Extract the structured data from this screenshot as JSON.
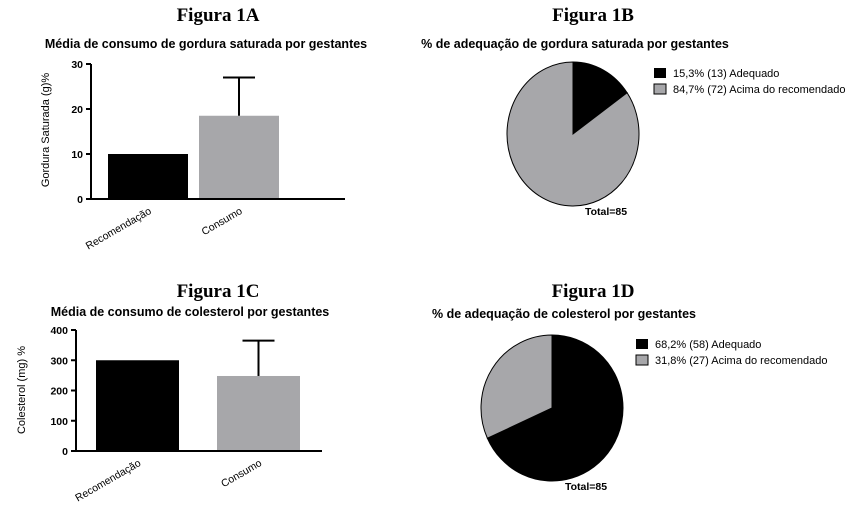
{
  "colors": {
    "recommendation": "#000000",
    "consumption": "#a7a7aa",
    "adequate": "#000000",
    "above": "#a7a7aa"
  },
  "chart_data": [
    {
      "id": "1A",
      "type": "bar",
      "heading": "Figura 1A",
      "title": "Média de consumo de gordura saturada por gestantes",
      "ylabel": "Gordura Saturada (g)%",
      "categories": [
        "Recomendação",
        "Consumo"
      ],
      "values": [
        10,
        18.5
      ],
      "error_upper": [
        0,
        8.5
      ],
      "ylim": [
        0,
        30
      ],
      "yticks": [
        0,
        10,
        20,
        30
      ]
    },
    {
      "id": "1B",
      "type": "pie",
      "heading": "Figura 1B",
      "title": "% de adequação de gordura saturada por gestantes",
      "labels": [
        "15,3% (13) Adequado",
        "84,7% (72) Acima do recomendado"
      ],
      "values": [
        15.3,
        84.7
      ],
      "total_label": "Total=85"
    },
    {
      "id": "1C",
      "type": "bar",
      "heading": "Figura 1C",
      "title": "Média de consumo de colesterol por gestantes",
      "ylabel": "Colesterol (mg) %",
      "categories": [
        "Recomendação",
        "Consumo"
      ],
      "values": [
        300,
        248
      ],
      "error_upper": [
        0,
        117
      ],
      "ylim": [
        0,
        400
      ],
      "yticks": [
        0,
        100,
        200,
        300,
        400
      ]
    },
    {
      "id": "1D",
      "type": "pie",
      "heading": "Figura 1D",
      "title": "% de adequação de colesterol por gestantes",
      "labels": [
        "68,2% (58) Adequado",
        "31,8% (27) Acima do recomendado"
      ],
      "values": [
        68.2,
        31.8
      ],
      "total_label": "Total=85"
    }
  ]
}
